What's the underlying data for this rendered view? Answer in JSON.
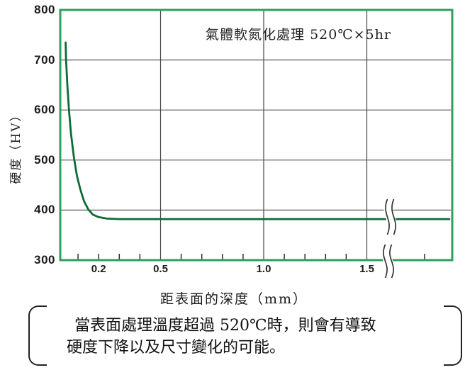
{
  "note": {
    "line1": "當表面處理溫度超過 520℃時，則會有導致",
    "line2": "硬度下降以及尺寸變化的可能。"
  },
  "chart_data": {
    "type": "line",
    "title": "氣體軟氮化處理 520℃×5hr",
    "xlabel": "距表面的深度（mm）",
    "ylabel": "硬度（HV）",
    "xlim": [
      0,
      1.9
    ],
    "ylim": [
      300,
      800
    ],
    "grid": "on",
    "axis_break_x": 1.61,
    "x_gridlines": [
      0.5,
      1.0,
      1.5
    ],
    "y_gridlines": [
      400,
      500,
      600,
      700
    ],
    "x_ticks_minor": [
      0.1,
      0.2,
      0.3,
      0.4,
      0.6,
      0.7,
      0.8,
      0.9,
      1.1,
      1.2,
      1.3,
      1.4,
      1.78
    ],
    "x_tick_labels": [
      {
        "value": 0.2,
        "label": "0.2"
      },
      {
        "value": 0.5,
        "label": "0.5"
      },
      {
        "value": 1.0,
        "label": "1.0"
      },
      {
        "value": 1.5,
        "label": "1.5"
      }
    ],
    "y_tick_labels": [
      {
        "value": 800,
        "label": "800"
      },
      {
        "value": 700,
        "label": "700"
      },
      {
        "value": 600,
        "label": "600"
      },
      {
        "value": 500,
        "label": "500"
      },
      {
        "value": 400,
        "label": "400"
      },
      {
        "value": 300,
        "label": "300"
      }
    ],
    "series": [
      {
        "name": "hardness-depth-profile",
        "x": [
          0.04,
          0.042,
          0.048,
          0.056,
          0.066,
          0.08,
          0.095,
          0.112,
          0.13,
          0.15,
          0.172,
          0.2,
          0.24,
          0.3,
          0.4,
          0.6,
          1.0,
          1.5,
          1.9
        ],
        "y": [
          735,
          700,
          650,
          600,
          552,
          505,
          468,
          440,
          417,
          401,
          391,
          386,
          383,
          382,
          382,
          382,
          382,
          382,
          382
        ]
      }
    ],
    "colors": {
      "frame": "#2f9e5e",
      "curve": "#0d6b37",
      "hgrid": "#5f5f5f",
      "vgrid": "#474747",
      "tick": "#2e2e2e",
      "break_mark": "#333333"
    }
  }
}
